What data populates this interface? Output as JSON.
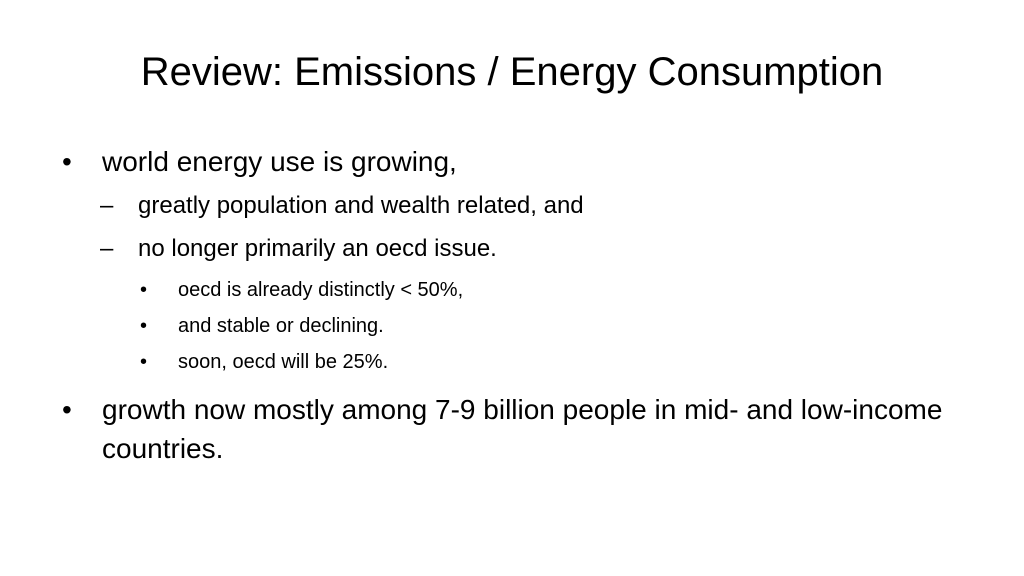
{
  "slide": {
    "title": "Review: Emissions / Energy Consumption",
    "bullets": [
      {
        "marker": "•",
        "text": "world energy use is growing,"
      },
      {
        "marker": "–",
        "text": "greatly population and wealth related, and"
      },
      {
        "marker": "–",
        "text": "no longer primarily an oecd issue."
      },
      {
        "marker": "•",
        "text": "oecd is already distinctly < 50%,"
      },
      {
        "marker": "•",
        "text": "and stable or declining."
      },
      {
        "marker": "•",
        "text": "soon, oecd will be 25%."
      },
      {
        "marker": "•",
        "text": "growth now mostly among 7-9 billion people in mid- and low-income countries."
      }
    ]
  }
}
